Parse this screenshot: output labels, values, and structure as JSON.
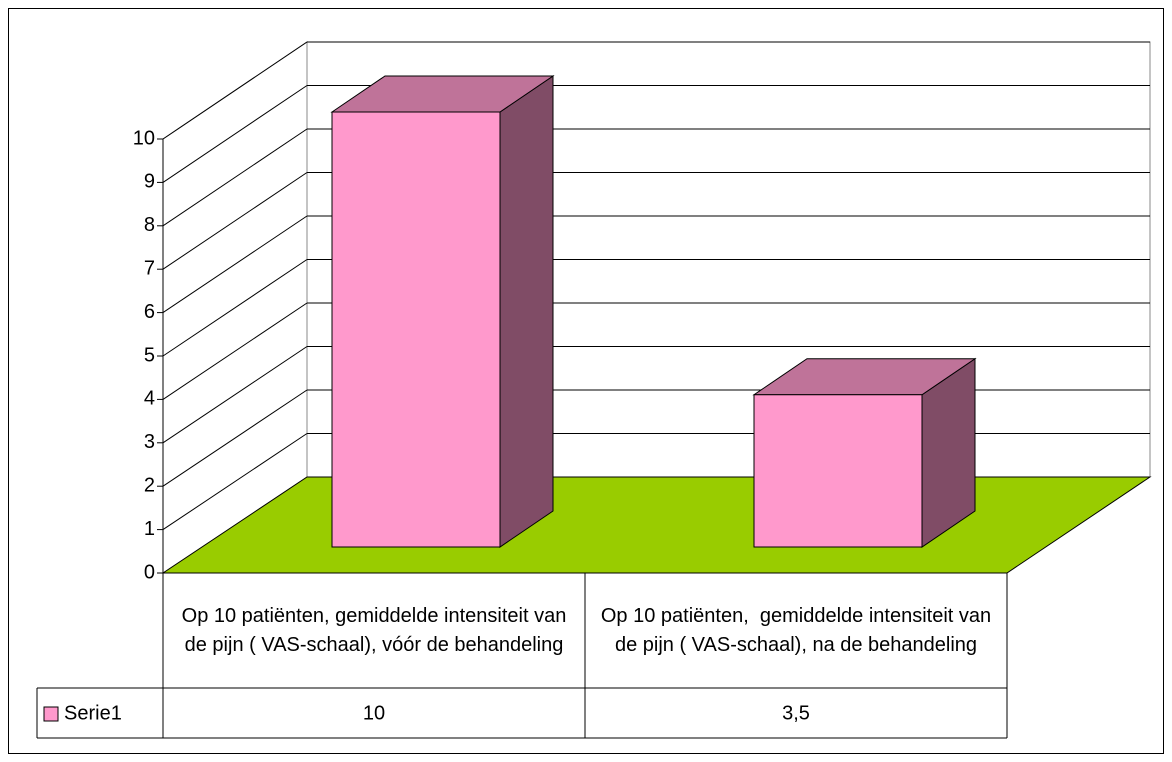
{
  "chart_data": {
    "type": "bar3d",
    "categories": [
      "Op 10 patiënten, gemiddelde intensiteit van de pijn ( VAS-schaal), vóór de behandeling",
      "Op 10 patiënten,  gemiddelde intensiteit van de pijn ( VAS-schaal), na de behandeling"
    ],
    "series": [
      {
        "name": "Serie1",
        "color": "#ff99cc",
        "values": [
          10,
          3.5
        ],
        "value_labels": [
          "10",
          "3,5"
        ]
      }
    ],
    "ylim": [
      0,
      10
    ],
    "yticks": [
      0,
      1,
      2,
      3,
      4,
      5,
      6,
      7,
      8,
      9,
      10
    ],
    "grid": true,
    "floor_color": "#99cc00",
    "data_table": true
  }
}
